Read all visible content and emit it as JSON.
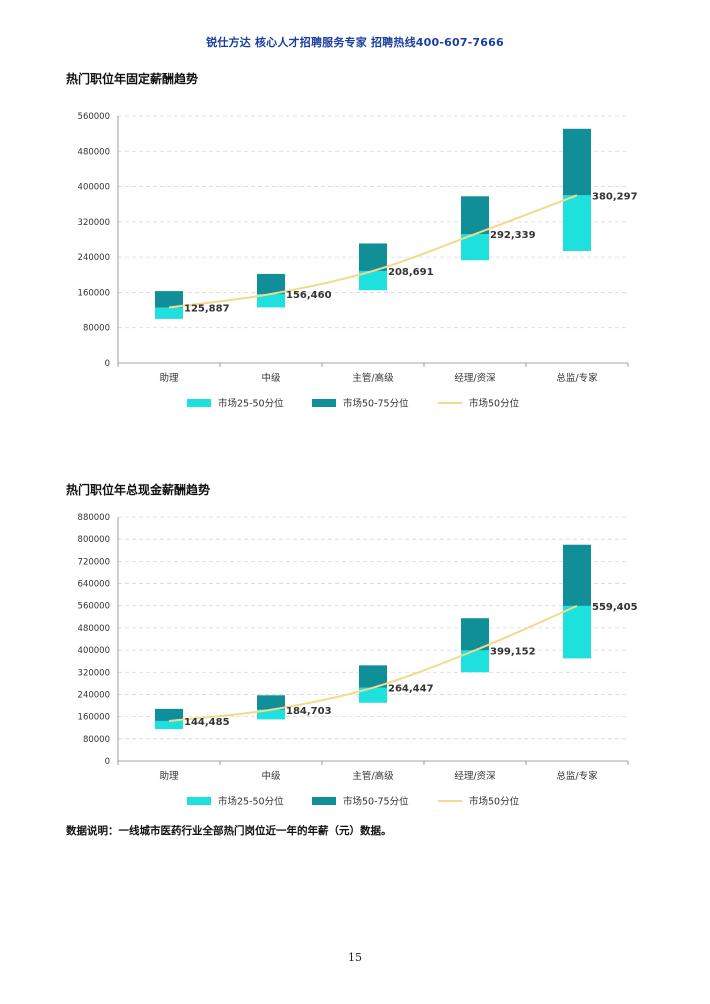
{
  "header": {
    "text": "锐仕方达 核心人才招聘服务专家 招聘热线400-607-7666"
  },
  "colors": {
    "low": "#1ee0dd",
    "high": "#108f99",
    "line": "#f3d98a"
  },
  "chart_data": [
    {
      "type": "bar",
      "title": "热门职位年固定薪酬趋势",
      "categories": [
        "助理",
        "中级",
        "主管/高级",
        "经理/资深",
        "总监/专家"
      ],
      "ylim": [
        0,
        560000
      ],
      "yticks": [
        "0",
        "80000",
        "160000",
        "240000",
        "320000",
        "400000",
        "480000",
        "560000"
      ],
      "yticks_values": [
        0,
        80000,
        160000,
        240000,
        320000,
        400000,
        480000,
        560000
      ],
      "series": [
        {
          "name": "市场25-50分位",
          "kind": "range",
          "low": [
            100000,
            126000,
            165000,
            233000,
            254000
          ],
          "high": [
            125887,
            156460,
            208691,
            292339,
            380297
          ]
        },
        {
          "name": "市场50-75分位",
          "kind": "range",
          "low": [
            125887,
            156460,
            208691,
            292339,
            380297
          ],
          "high": [
            163000,
            202000,
            271000,
            378000,
            531000
          ]
        },
        {
          "name": "市场50分位",
          "kind": "line",
          "values": [
            125887,
            156460,
            208691,
            292339,
            380297
          ]
        }
      ],
      "data_labels": [
        "125,887",
        "156,460",
        "208,691",
        "292,339",
        "380,297"
      ],
      "legend": "bottom",
      "grid": true
    },
    {
      "type": "bar",
      "title": "热门职位年总现金薪酬趋势",
      "categories": [
        "助理",
        "中级",
        "主管/高级",
        "经理/资深",
        "总监/专家"
      ],
      "ylim": [
        0,
        880000
      ],
      "yticks": [
        "0",
        "80000",
        "160000",
        "240000",
        "320000",
        "400000",
        "480000",
        "560000",
        "640000",
        "720000",
        "800000",
        "880000"
      ],
      "yticks_values": [
        0,
        80000,
        160000,
        240000,
        320000,
        400000,
        480000,
        560000,
        640000,
        720000,
        800000,
        880000
      ],
      "series": [
        {
          "name": "市场25-50分位",
          "kind": "range",
          "low": [
            115000,
            150000,
            210000,
            320000,
            370000
          ],
          "high": [
            144485,
            184703,
            264447,
            399152,
            559405
          ]
        },
        {
          "name": "市场50-75分位",
          "kind": "range",
          "low": [
            144485,
            184703,
            264447,
            399152,
            559405
          ],
          "high": [
            188000,
            237000,
            345000,
            515000,
            780000
          ]
        },
        {
          "name": "市场50分位",
          "kind": "line",
          "values": [
            144485,
            184703,
            264447,
            399152,
            559405
          ]
        }
      ],
      "data_labels": [
        "144,485",
        "184,703",
        "264,447",
        "399,152",
        "559,405"
      ],
      "legend": "bottom",
      "grid": true
    }
  ],
  "note": "数据说明：一线城市医药行业全部热门岗位近一年的年薪（元）数据。",
  "page_number": "15"
}
